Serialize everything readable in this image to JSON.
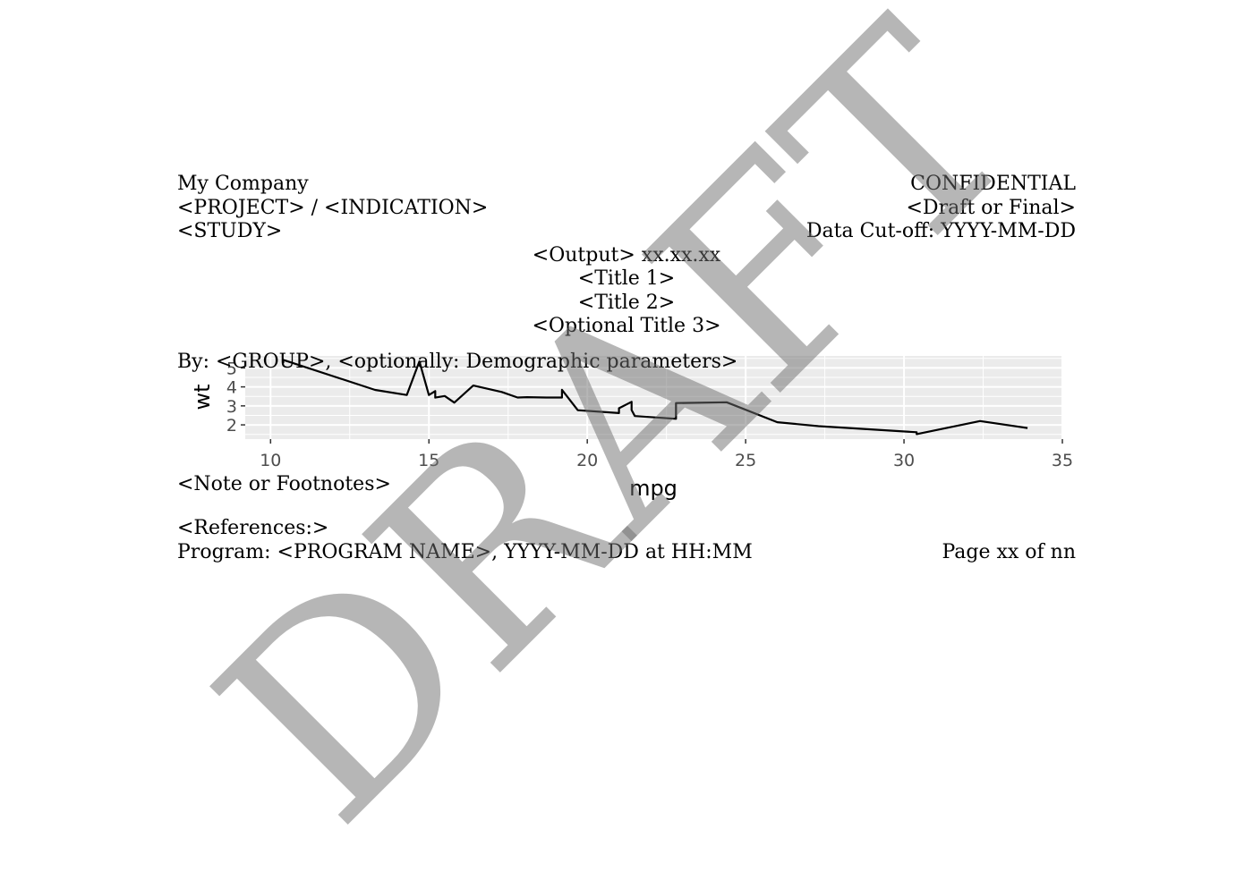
{
  "header": {
    "company": "My Company",
    "project": "<PROJECT> / <INDICATION>",
    "study": "<STUDY>",
    "confidential": "CONFIDENTIAL",
    "status": "<Draft or Final>",
    "cutoff": "Data Cut-off: YYYY-MM-DD"
  },
  "titles": {
    "output": "<Output> xx.xx.xx",
    "title1": "<Title 1>",
    "title2": "<Title 2>",
    "title3": "<Optional Title 3>"
  },
  "by_line": "By: <GROUP>, <optionally: Demographic parameters>",
  "footer": {
    "note": "<Note or Footnotes>",
    "references": "<References:>",
    "program": "Program: <PROGRAM NAME>, YYYY-MM-DD at HH:MM",
    "page": "Page xx of nn"
  },
  "watermark": "DRAFT",
  "chart_data": {
    "type": "line",
    "xlabel": "mpg",
    "ylabel": "wt",
    "xlim": [
      9.2,
      35.0
    ],
    "ylim": [
      1.25,
      5.63
    ],
    "xticks": [
      10,
      15,
      20,
      25,
      30,
      35
    ],
    "yticks": [
      2,
      3,
      4,
      5
    ],
    "grid": true,
    "line_color": "#000000",
    "panel_color": "#ebebeb",
    "x": [
      10.4,
      10.4,
      13.3,
      14.3,
      14.7,
      15.0,
      15.2,
      15.2,
      15.5,
      15.8,
      16.4,
      17.3,
      17.8,
      18.1,
      18.7,
      19.2,
      19.2,
      19.7,
      21.0,
      21.0,
      21.4,
      21.4,
      21.5,
      22.8,
      22.8,
      24.4,
      26.0,
      27.3,
      30.4,
      30.4,
      32.4,
      33.9
    ],
    "y": [
      5.25,
      5.424,
      3.84,
      3.57,
      5.345,
      3.57,
      3.78,
      3.435,
      3.52,
      3.17,
      4.07,
      3.73,
      3.44,
      3.46,
      3.44,
      3.44,
      3.845,
      2.77,
      2.62,
      2.875,
      3.215,
      2.78,
      2.465,
      2.32,
      3.15,
      3.19,
      2.14,
      1.935,
      1.615,
      1.513,
      2.2,
      1.835
    ]
  }
}
